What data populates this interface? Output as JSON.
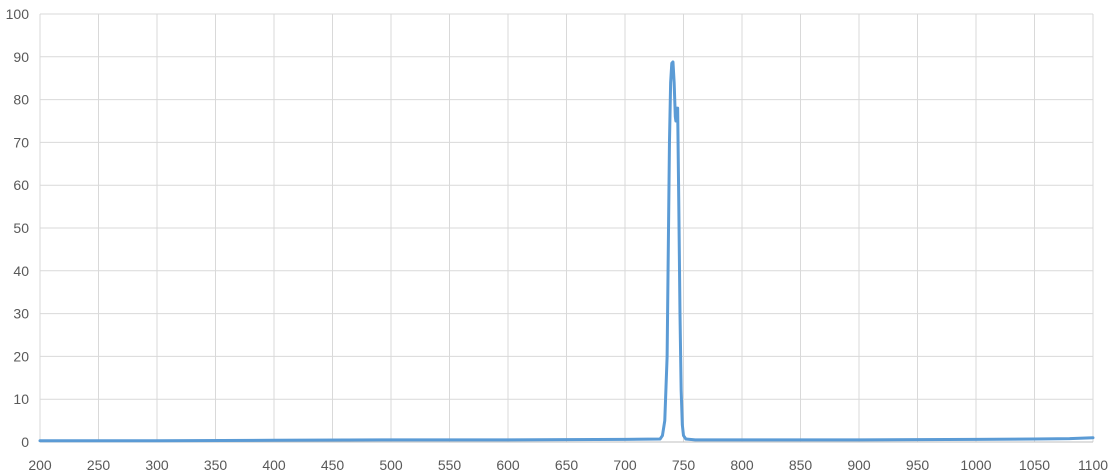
{
  "chart_data": {
    "type": "line",
    "title": "",
    "xlabel": "",
    "ylabel": "",
    "xlim": [
      200,
      1100
    ],
    "ylim": [
      0,
      100
    ],
    "x_ticks": [
      200,
      250,
      300,
      350,
      400,
      450,
      500,
      550,
      600,
      650,
      700,
      750,
      800,
      850,
      900,
      950,
      1000,
      1050,
      1100
    ],
    "y_ticks": [
      0,
      10,
      20,
      30,
      40,
      50,
      60,
      70,
      80,
      90,
      100
    ],
    "grid": true,
    "legend": "none",
    "colors": {
      "series": "#5b9bd5",
      "grid": "#d9d9d9",
      "axis": "#bfbfbf",
      "text": "#595959"
    },
    "series": [
      {
        "points": [
          [
            200,
            0.3
          ],
          [
            300,
            0.3
          ],
          [
            400,
            0.4
          ],
          [
            500,
            0.5
          ],
          [
            600,
            0.5
          ],
          [
            700,
            0.6
          ],
          [
            730,
            0.7
          ],
          [
            732,
            1.5
          ],
          [
            734,
            5
          ],
          [
            736,
            20
          ],
          [
            737,
            45
          ],
          [
            738,
            70
          ],
          [
            739,
            84
          ],
          [
            740,
            88.5
          ],
          [
            741,
            88.8
          ],
          [
            742,
            84
          ],
          [
            743,
            76
          ],
          [
            743.5,
            75
          ],
          [
            744,
            78
          ],
          [
            744.5,
            75
          ],
          [
            745,
            78
          ],
          [
            746,
            55
          ],
          [
            747,
            30
          ],
          [
            748,
            12
          ],
          [
            749,
            4
          ],
          [
            750,
            1.5
          ],
          [
            752,
            0.7
          ],
          [
            760,
            0.5
          ],
          [
            800,
            0.5
          ],
          [
            900,
            0.5
          ],
          [
            1000,
            0.6
          ],
          [
            1050,
            0.7
          ],
          [
            1080,
            0.8
          ],
          [
            1100,
            1.0
          ]
        ]
      }
    ]
  }
}
